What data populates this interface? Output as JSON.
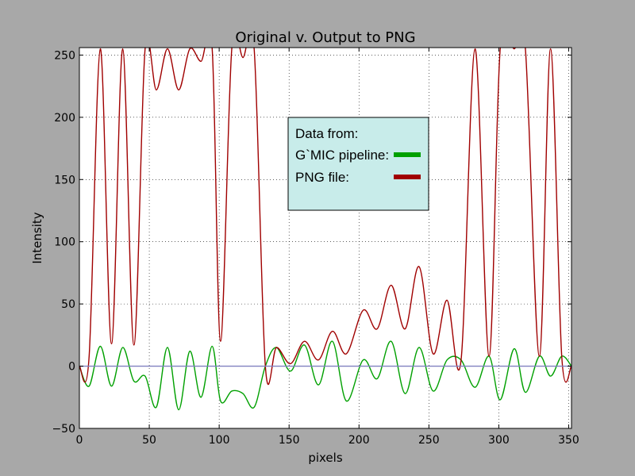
{
  "chart_data": {
    "type": "line",
    "title": "Original v. Output to PNG",
    "xlabel": "pixels",
    "ylabel": "Intensity",
    "xlim": [
      0,
      352
    ],
    "ylim": [
      -50,
      256
    ],
    "xticks": [
      0,
      50,
      100,
      150,
      200,
      250,
      300,
      350
    ],
    "yticks": [
      -50,
      0,
      50,
      100,
      150,
      200,
      250
    ],
    "xtick_labels": [
      "0",
      "50",
      "100",
      "150",
      "200",
      "250",
      "300",
      "350"
    ],
    "ytick_labels": [
      "−50",
      "0",
      "50",
      "100",
      "150",
      "200",
      "250"
    ],
    "grid": true,
    "legend": {
      "title": "Data from:",
      "placement": "center",
      "entries": [
        "G`MIC pipeline:",
        "PNG file:"
      ]
    },
    "series": [
      {
        "name": "G`MIC pipeline:",
        "color": "#00a000",
        "x": [
          0,
          7,
          15,
          23,
          31,
          39,
          47,
          55,
          63,
          71,
          79,
          87,
          95,
          101,
          109,
          117,
          125,
          133,
          141,
          151,
          161,
          171,
          181,
          191,
          203,
          213,
          223,
          233,
          243,
          253,
          263,
          273,
          283,
          293,
          301,
          311,
          319,
          329,
          337,
          345,
          352
        ],
        "y": [
          0,
          -16,
          16,
          -16,
          15,
          -12,
          -8,
          -33,
          15,
          -35,
          12,
          -25,
          16,
          -28,
          -20,
          -22,
          -33,
          0,
          15,
          -4,
          17,
          -15,
          20,
          -28,
          5,
          -10,
          20,
          -22,
          15,
          -20,
          5,
          5,
          -17,
          8,
          -27,
          14,
          -21,
          8,
          -8,
          8,
          0
        ]
      },
      {
        "name": "PNG file:",
        "color": "#a00000",
        "x": [
          0,
          7,
          15,
          23,
          31,
          39,
          47,
          55,
          63,
          71,
          79,
          87,
          95,
          101,
          109,
          117,
          125,
          133,
          141,
          151,
          161,
          171,
          181,
          191,
          203,
          213,
          223,
          233,
          243,
          253,
          263,
          273,
          283,
          293,
          301,
          311,
          319,
          329,
          337,
          345,
          352
        ],
        "y": [
          0,
          8,
          255,
          18,
          255,
          17,
          255,
          222,
          255,
          222,
          255,
          245,
          255,
          20,
          255,
          248,
          255,
          0,
          15,
          2,
          20,
          5,
          28,
          10,
          45,
          30,
          65,
          30,
          80,
          10,
          53,
          5,
          255,
          8,
          255,
          255,
          255,
          8,
          255,
          8,
          0
        ]
      },
      {
        "name": "",
        "color": "#8080c0",
        "x": [
          0,
          352
        ],
        "y": [
          0,
          0
        ]
      }
    ]
  }
}
